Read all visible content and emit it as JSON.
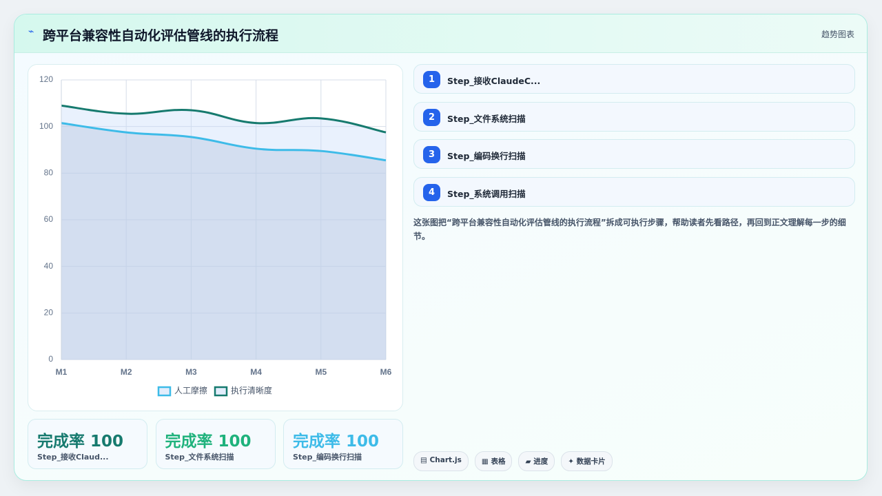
{
  "header": {
    "icon": "⌁",
    "title": "跨平台兼容性自动化评估管线的执行流程",
    "tag": "趋势图表"
  },
  "chart_data": {
    "type": "line",
    "categories": [
      "M1",
      "M2",
      "M3",
      "M4",
      "M5",
      "M6"
    ],
    "series": [
      {
        "name": "人工摩擦",
        "color": "#3dbbe8",
        "values": [
          101.5,
          97.5,
          95.5,
          90.5,
          89.5,
          85.5
        ]
      },
      {
        "name": "执行清晰度",
        "color": "#167a6e",
        "values": [
          109,
          105.5,
          107,
          101.5,
          103.5,
          97.5
        ]
      }
    ],
    "ylim": [
      0,
      120
    ],
    "yticks": [
      0,
      20,
      40,
      60,
      80,
      100,
      120
    ],
    "grid": true
  },
  "steps": [
    {
      "number": "1",
      "label": "Step_接收ClaudeC..."
    },
    {
      "number": "2",
      "label": "Step_文件系统扫描"
    },
    {
      "number": "3",
      "label": "Step_编码换行扫描"
    },
    {
      "number": "4",
      "label": "Step_系统调用扫描"
    }
  ],
  "description": "这张图把“跨平台兼容性自动化评估管线的执行流程”拆成可执行步骤，帮助读者先看路径，再回到正文理解每一步的细节。",
  "stats": [
    {
      "label": "完成率",
      "value": 100,
      "caption": "Step_接收Claud...",
      "color": "#167a6e"
    },
    {
      "label": "完成率",
      "value": 100,
      "caption": "Step_文件系统扫描",
      "color": "#1fb27c"
    },
    {
      "label": "完成率",
      "value": 100,
      "caption": "Step_编码换行扫描",
      "color": "#3dbbe8"
    }
  ],
  "tags": [
    "▤ Chart.js",
    "▦ 表格",
    "▰ 进度",
    "✦ 数据卡片"
  ]
}
